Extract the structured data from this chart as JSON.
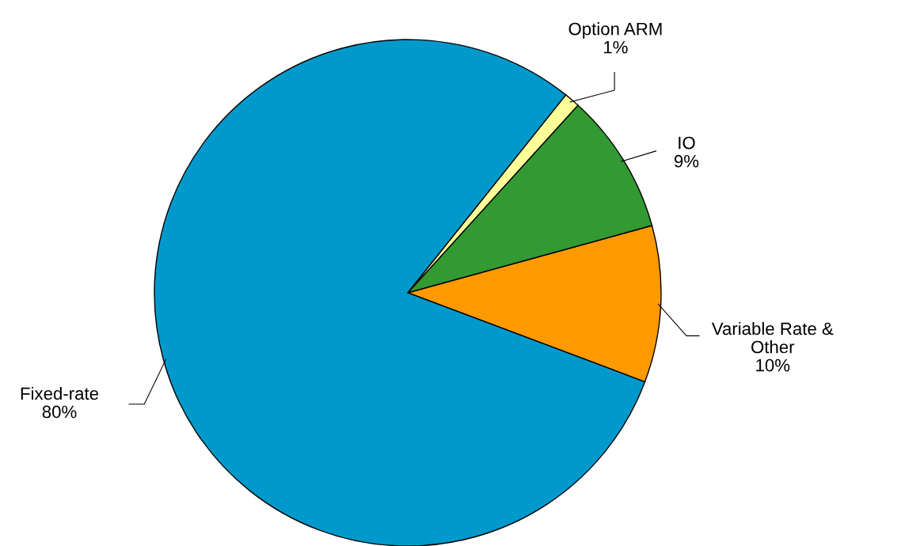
{
  "chart_data": {
    "type": "pie",
    "categories": [
      "Variable Rate & Other",
      "IO",
      "Option ARM",
      "Fixed-rate"
    ],
    "values": [
      10,
      9,
      1,
      80
    ],
    "colors": [
      "#ff9900",
      "#339933",
      "#ffff99",
      "#0099cc"
    ],
    "value_labels": [
      "10%",
      "9%",
      "1%",
      "80%"
    ]
  }
}
